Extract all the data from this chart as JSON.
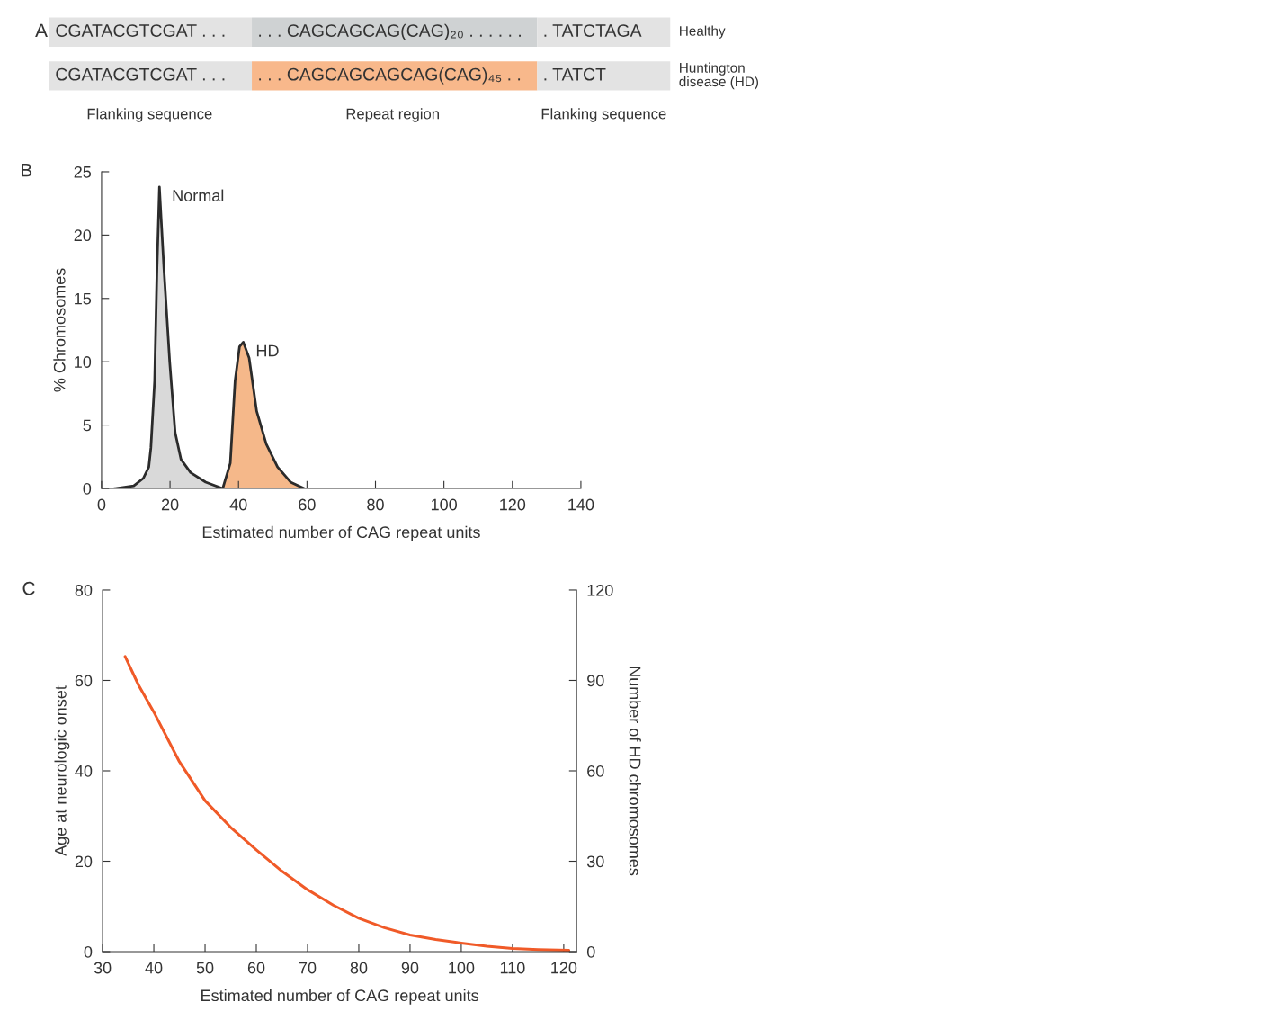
{
  "chart_data": [
    {
      "type": "other",
      "title": "A",
      "annotations": [
        "CGATACGTCGAT . . .",
        ". . . CAGCAGCAG(CAG)₂₀ . . . . . .",
        ". TATCTAGA",
        "Healthy",
        "CGATACGTCGAT . . .",
        ". . . CAGCAGCAGCAG(CAG)₄₅ . .",
        ". TATCT",
        "Huntington\ndisease (HD)",
        "Flanking sequence",
        "Repeat region",
        "Flanking sequence"
      ]
    },
    {
      "type": "area",
      "title": "B",
      "xlabel": "Estimated number of CAG repeat units",
      "ylabel": "% Chromosomes",
      "xlim": [
        0,
        140
      ],
      "xticks": [
        0,
        20,
        40,
        60,
        80,
        100,
        120,
        140
      ],
      "ylim": [
        0,
        25
      ],
      "yticks": [
        0,
        5,
        10,
        15,
        20,
        25
      ],
      "grid": false,
      "legend": false,
      "series": [
        {
          "name": "Normal",
          "color": "#d9d9d9",
          "x": [
            4,
            9.4,
            12.2,
            13.8,
            14.4,
            15.5,
            16.2,
            16.9,
            18.2,
            19.9,
            21.5,
            23.2,
            26,
            30.4,
            34.8
          ],
          "values": [
            0,
            0.2,
            0.8,
            1.7,
            3.2,
            8.5,
            17.4,
            23.8,
            17.4,
            10,
            4.4,
            2.3,
            1.25,
            0.5,
            0.05
          ]
        },
        {
          "name": "HD",
          "color": "#f5b88a",
          "x": [
            35.4,
            37.6,
            39,
            40.3,
            41.4,
            43.1,
            45.3,
            48.1,
            51.4,
            55.2,
            59.1
          ],
          "values": [
            0,
            2,
            8.5,
            11.2,
            11.55,
            10.3,
            6.1,
            3.5,
            1.7,
            0.5,
            0
          ]
        }
      ]
    },
    {
      "type": "line",
      "title": "C",
      "xlabel": "Estimated number of CAG repeat units",
      "ylabel": "Age at neurologic onset",
      "y2label": "Number of HD chromosomes",
      "xlim": [
        30,
        122.5
      ],
      "xticks": [
        30,
        40,
        50,
        60,
        70,
        80,
        90,
        100,
        110,
        120
      ],
      "ylim": [
        0,
        80
      ],
      "yticks": [
        0,
        20,
        40,
        60,
        80
      ],
      "y2lim": [
        0,
        120
      ],
      "y2ticks": [
        0,
        30,
        60,
        90,
        120
      ],
      "grid": false,
      "legend": false,
      "series": [
        {
          "color": "#f05a28",
          "x": [
            34.4,
            37,
            40,
            45,
            50,
            55,
            60,
            65,
            70,
            75,
            80,
            85,
            90,
            95,
            100,
            105,
            110,
            115,
            121
          ],
          "values": [
            65.3,
            59,
            53,
            42,
            33.4,
            27.5,
            22.5,
            17.8,
            13.7,
            10.3,
            7.4,
            5.3,
            3.7,
            2.7,
            1.9,
            1.2,
            0.7,
            0.45,
            0.3
          ]
        }
      ]
    }
  ]
}
